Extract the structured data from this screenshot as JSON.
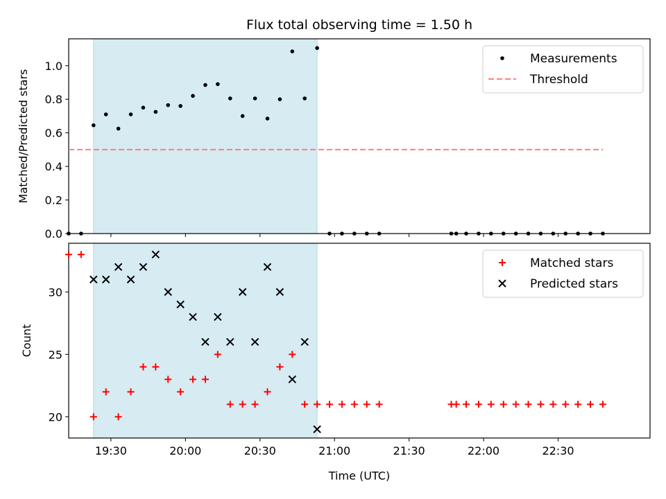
{
  "figure": {
    "title": "Flux total observing time = 1.50 h",
    "xlabel": "Time (UTC)"
  },
  "colors": {
    "measurement": "#000000",
    "threshold": "#ff7f7f",
    "matched": "#ff0000",
    "predicted": "#000000",
    "highlight": "#add8e6"
  },
  "chart_data": [
    {
      "type": "scatter",
      "title": "Flux total observing time = 1.50 h",
      "ylabel": "Matched/Predicted stars",
      "xlabel": "",
      "ylim": [
        0,
        1.16
      ],
      "yticks": [
        0.0,
        0.2,
        0.4,
        0.6,
        0.8,
        1.0
      ],
      "xlim": [
        "19:13",
        "23:07"
      ],
      "xticks": [
        "19:30",
        "20:00",
        "20:30",
        "21:00",
        "21:30",
        "22:00",
        "22:30"
      ],
      "highlight_span": [
        "19:23",
        "20:53"
      ],
      "legend": {
        "placement": "upper-right",
        "entries": [
          "Measurements",
          "Threshold"
        ]
      },
      "series": [
        {
          "name": "Measurements",
          "marker": "dot",
          "x": [
            "19:13",
            "19:18",
            "19:23",
            "19:28",
            "19:33",
            "19:38",
            "19:43",
            "19:48",
            "19:53",
            "19:58",
            "20:03",
            "20:08",
            "20:13",
            "20:18",
            "20:23",
            "20:28",
            "20:33",
            "20:38",
            "20:43",
            "20:48",
            "20:53",
            "20:58",
            "21:03",
            "21:08",
            "21:13",
            "21:18",
            "21:47",
            "21:49",
            "21:53",
            "21:58",
            "22:03",
            "22:08",
            "22:13",
            "22:18",
            "22:23",
            "22:28",
            "22:33",
            "22:38",
            "22:43",
            "22:48"
          ],
          "y": [
            0,
            0,
            0.645,
            0.71,
            0.625,
            0.71,
            0.75,
            0.725,
            0.765,
            0.76,
            0.82,
            0.885,
            0.89,
            0.805,
            0.7,
            0.805,
            0.685,
            0.8,
            1.085,
            0.805,
            1.105,
            0,
            0,
            0,
            0,
            0,
            0,
            0,
            0,
            0,
            0,
            0,
            0,
            0,
            0,
            0,
            0,
            0,
            0,
            0
          ]
        },
        {
          "name": "Threshold",
          "marker": "dashed-line",
          "x": [
            "19:13",
            "22:48"
          ],
          "y": [
            0.5,
            0.5
          ]
        }
      ]
    },
    {
      "type": "scatter",
      "ylabel": "Count",
      "xlabel": "Time (UTC)",
      "ylim": [
        18.3,
        33.9
      ],
      "yticks": [
        20,
        25,
        30
      ],
      "xlim": [
        "19:13",
        "23:07"
      ],
      "xticks": [
        "19:30",
        "20:00",
        "20:30",
        "21:00",
        "21:30",
        "22:00",
        "22:30"
      ],
      "highlight_span": [
        "19:23",
        "20:53"
      ],
      "legend": {
        "placement": "upper-right",
        "entries": [
          "Matched stars",
          "Predicted stars"
        ]
      },
      "series": [
        {
          "name": "Matched stars",
          "marker": "plus",
          "x": [
            "19:13",
            "19:18",
            "19:23",
            "19:28",
            "19:33",
            "19:38",
            "19:43",
            "19:48",
            "19:53",
            "19:58",
            "20:03",
            "20:08",
            "20:13",
            "20:18",
            "20:23",
            "20:28",
            "20:33",
            "20:38",
            "20:43",
            "20:48",
            "20:53",
            "20:58",
            "21:03",
            "21:08",
            "21:13",
            "21:18",
            "21:47",
            "21:49",
            "21:53",
            "21:58",
            "22:03",
            "22:08",
            "22:13",
            "22:18",
            "22:23",
            "22:28",
            "22:33",
            "22:38",
            "22:43",
            "22:48"
          ],
          "y": [
            33,
            33,
            20,
            22,
            20,
            22,
            24,
            24,
            23,
            22,
            23,
            23,
            25,
            21,
            21,
            21,
            22,
            24,
            25,
            21,
            21,
            21,
            21,
            21,
            21,
            21,
            21,
            21,
            21,
            21,
            21,
            21,
            21,
            21,
            21,
            21,
            21,
            21,
            21,
            21
          ]
        },
        {
          "name": "Predicted stars",
          "marker": "cross",
          "x": [
            "19:23",
            "19:28",
            "19:33",
            "19:38",
            "19:43",
            "19:48",
            "19:53",
            "19:58",
            "20:03",
            "20:08",
            "20:13",
            "20:18",
            "20:23",
            "20:28",
            "20:33",
            "20:38",
            "20:43",
            "20:48",
            "20:53"
          ],
          "y": [
            31,
            31,
            32,
            31,
            32,
            33,
            30,
            29,
            28,
            26,
            28,
            26,
            30,
            26,
            32,
            30,
            23,
            26,
            19
          ]
        }
      ]
    }
  ]
}
